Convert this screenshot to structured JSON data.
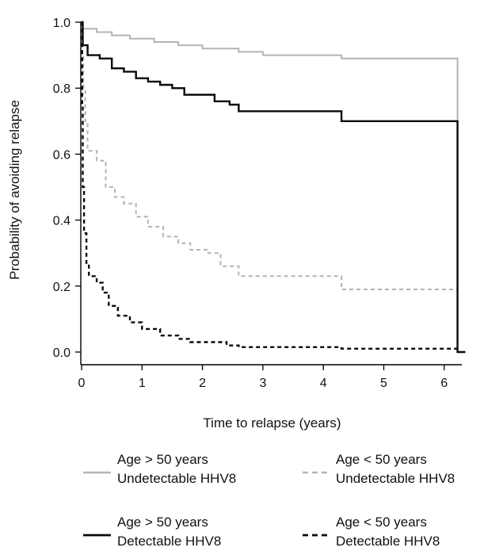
{
  "chart_data": {
    "type": "line",
    "title": "",
    "xlabel": "Time to relapse (years)",
    "ylabel": "Probability of avoiding relapse",
    "xlim": [
      0,
      6.5
    ],
    "ylim": [
      0,
      1.0
    ],
    "xticks": [
      "0",
      "1",
      "2",
      "3",
      "4",
      "5",
      "6"
    ],
    "yticks": [
      "0.0",
      "0.2",
      "0.4",
      "0.6",
      "0.8",
      "1.0"
    ],
    "grid": false,
    "legend_position": "bottom",
    "series": [
      {
        "name": "Age > 50 years Undetectable HHV8",
        "legend_lines": [
          "Age > 50 years",
          "Undetectable HHV8"
        ],
        "color": "#b4b4b4",
        "dash": "solid",
        "points": [
          [
            0,
            1.0
          ],
          [
            0.02,
            0.98
          ],
          [
            0.25,
            0.97
          ],
          [
            0.5,
            0.96
          ],
          [
            0.8,
            0.95
          ],
          [
            1.2,
            0.94
          ],
          [
            1.6,
            0.93
          ],
          [
            2.0,
            0.92
          ],
          [
            2.6,
            0.91
          ],
          [
            3.0,
            0.9
          ],
          [
            4.3,
            0.89
          ],
          [
            6.22,
            0.89
          ],
          [
            6.22,
            0.7
          ]
        ]
      },
      {
        "name": "Age < 50 years Undetectable HHV8",
        "legend_lines": [
          "Age < 50 years",
          "Undetectable HHV8"
        ],
        "color": "#b4b4b4",
        "dash": "dashed",
        "points": [
          [
            0,
            1.0
          ],
          [
            0.01,
            0.9
          ],
          [
            0.03,
            0.8
          ],
          [
            0.06,
            0.7
          ],
          [
            0.1,
            0.61
          ],
          [
            0.25,
            0.58
          ],
          [
            0.4,
            0.5
          ],
          [
            0.55,
            0.47
          ],
          [
            0.7,
            0.45
          ],
          [
            0.9,
            0.41
          ],
          [
            1.1,
            0.38
          ],
          [
            1.35,
            0.35
          ],
          [
            1.6,
            0.33
          ],
          [
            1.8,
            0.31
          ],
          [
            2.1,
            0.3
          ],
          [
            2.3,
            0.26
          ],
          [
            2.6,
            0.23
          ],
          [
            4.3,
            0.23
          ],
          [
            4.3,
            0.19
          ],
          [
            6.22,
            0.19
          ]
        ]
      },
      {
        "name": "Age > 50 years Detectable HHV8",
        "legend_lines": [
          "Age > 50 years",
          "Detectable HHV8"
        ],
        "color": "#0a0a0a",
        "dash": "solid",
        "points": [
          [
            0,
            1.0
          ],
          [
            0.02,
            0.93
          ],
          [
            0.1,
            0.9
          ],
          [
            0.3,
            0.89
          ],
          [
            0.5,
            0.86
          ],
          [
            0.7,
            0.85
          ],
          [
            0.9,
            0.83
          ],
          [
            1.1,
            0.82
          ],
          [
            1.3,
            0.81
          ],
          [
            1.5,
            0.8
          ],
          [
            1.7,
            0.78
          ],
          [
            2.0,
            0.78
          ],
          [
            2.2,
            0.76
          ],
          [
            2.45,
            0.75
          ],
          [
            2.6,
            0.73
          ],
          [
            4.3,
            0.73
          ],
          [
            4.3,
            0.7
          ],
          [
            6.22,
            0.7
          ],
          [
            6.22,
            0.0
          ],
          [
            6.35,
            0.0
          ]
        ]
      },
      {
        "name": "Age < 50 years Detectable HHV8",
        "legend_lines": [
          "Age < 50 years",
          "Detectable HHV8"
        ],
        "color": "#0a0a0a",
        "dash": "dashed",
        "points": [
          [
            0,
            1.0
          ],
          [
            0.01,
            0.75
          ],
          [
            0.02,
            0.5
          ],
          [
            0.04,
            0.36
          ],
          [
            0.08,
            0.27
          ],
          [
            0.12,
            0.23
          ],
          [
            0.25,
            0.21
          ],
          [
            0.35,
            0.18
          ],
          [
            0.45,
            0.14
          ],
          [
            0.6,
            0.11
          ],
          [
            0.8,
            0.09
          ],
          [
            1.0,
            0.07
          ],
          [
            1.3,
            0.05
          ],
          [
            1.6,
            0.04
          ],
          [
            1.8,
            0.03
          ],
          [
            2.1,
            0.03
          ],
          [
            2.4,
            0.02
          ],
          [
            2.6,
            0.015
          ],
          [
            4.3,
            0.015
          ],
          [
            4.3,
            0.01
          ],
          [
            6.22,
            0.01
          ]
        ]
      }
    ]
  }
}
